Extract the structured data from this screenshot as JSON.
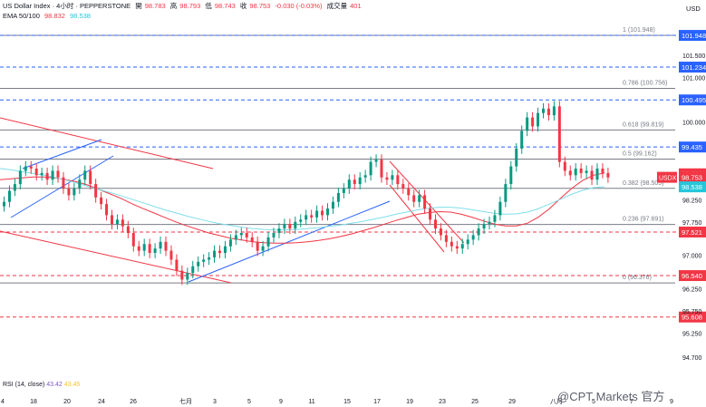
{
  "header": {
    "symbol": "US Dollar Index · 4小时 · PEPPERSTONE",
    "open_label": "開",
    "open": "98.783",
    "high_label": "高",
    "high": "98.793",
    "low_label": "低",
    "low": "98.743",
    "close_label": "收",
    "close": "98.753",
    "change": "-0.030 (-0.03%)",
    "volume_label": "成交量",
    "volume": "401",
    "ema_label": "EMA 50/100",
    "ema50": "98.832",
    "ema100": "98.538",
    "currency": "USD"
  },
  "rsi": {
    "label": "RSI (14, close)",
    "v1": "43.42",
    "v2": "43.45"
  },
  "watermark": "@CPT Markets 官方",
  "chart_data": {
    "type": "candlestick",
    "y_ticks": [
      "101.500",
      "101.000",
      "100.000",
      "98.250",
      "97.750",
      "97.000",
      "96.250",
      "95.750",
      "95.250",
      "94.700"
    ],
    "x_ticks": [
      "4",
      "18",
      "20",
      "24",
      "26",
      "七月",
      "3",
      "5",
      "9",
      "11",
      "15",
      "17",
      "19",
      "23",
      "25",
      "29",
      "八月",
      "5",
      "7",
      "9"
    ],
    "fib_levels": [
      {
        "label": "1 (101.948)",
        "value": 101.948
      },
      {
        "label": "0.786 (100.756)",
        "value": 100.756
      },
      {
        "label": "0.618 (99.819)",
        "value": 99.819
      },
      {
        "label": "0.5 (99.162)",
        "value": 99.162
      },
      {
        "label": "0.382 (98.505)",
        "value": 98.505
      },
      {
        "label": "0.236 (97.691)",
        "value": 97.691
      },
      {
        "label": "0 (96.376)",
        "value": 96.376
      }
    ],
    "price_lines": [
      {
        "value": "101.948",
        "color": "#2962ff"
      },
      {
        "value": "101.234",
        "color": "#2962ff"
      },
      {
        "value": "100.495",
        "color": "#2962ff"
      },
      {
        "value": "99.435",
        "color": "#2962ff"
      },
      {
        "value": "97.521",
        "color": "#f23645"
      },
      {
        "value": "96.540",
        "color": "#f23645"
      },
      {
        "value": "95.608",
        "color": "#f23645"
      }
    ],
    "axis_badges": [
      {
        "label": "98.832",
        "color": "#f23645"
      },
      {
        "label": "98.753",
        "color": "#f23645",
        "tag": "USDX"
      },
      {
        "label": "98.538",
        "color": "#26c6da"
      }
    ],
    "candle_close": [
      98.2,
      98.45,
      98.6,
      98.9,
      99.0,
      98.95,
      98.8,
      98.85,
      98.7,
      98.9,
      98.75,
      98.5,
      98.35,
      98.5,
      98.7,
      98.9,
      98.6,
      98.3,
      98.15,
      97.9,
      97.7,
      97.8,
      97.65,
      97.5,
      97.2,
      97.1,
      97.25,
      97.05,
      97.15,
      97.3,
      97.1,
      96.9,
      96.65,
      96.45,
      96.6,
      96.75,
      96.85,
      96.9,
      96.95,
      97.1,
      97.05,
      97.2,
      97.35,
      97.45,
      97.5,
      97.4,
      97.3,
      97.1,
      97.2,
      97.4,
      97.5,
      97.6,
      97.7,
      97.6,
      97.75,
      97.8,
      97.9,
      97.85,
      98.0,
      97.9,
      98.05,
      98.2,
      98.4,
      98.5,
      98.7,
      98.6,
      98.75,
      98.8,
      99.1,
      99.15,
      98.75,
      98.7,
      98.8,
      98.6,
      98.5,
      98.35,
      98.2,
      98.35,
      98.05,
      97.8,
      97.6,
      97.45,
      97.3,
      97.2,
      97.15,
      97.25,
      97.35,
      97.45,
      97.6,
      97.7,
      97.75,
      97.9,
      98.2,
      98.6,
      99.0,
      99.4,
      99.8,
      100.1,
      99.9,
      100.2,
      100.3,
      100.15,
      100.35,
      99.1,
      98.9,
      98.8,
      98.95,
      98.85,
      98.9,
      98.7,
      98.95,
      98.85,
      98.75
    ],
    "ema50": [
      98.7,
      98.72,
      98.74,
      98.76,
      98.76,
      98.74,
      98.7,
      98.65,
      98.58,
      98.48,
      98.38,
      98.28,
      98.16,
      98.05,
      97.95,
      97.85,
      97.75,
      97.66,
      97.58,
      97.5,
      97.44,
      97.38,
      97.34,
      97.3,
      97.28,
      97.27,
      97.27,
      97.28,
      97.3,
      97.33,
      97.37,
      97.42,
      97.48,
      97.55,
      97.62,
      97.7,
      97.78,
      97.85,
      97.92,
      97.96,
      97.98,
      97.97,
      97.92,
      97.85,
      97.77,
      97.7,
      97.66,
      97.66,
      97.72,
      97.86,
      98.05,
      98.28,
      98.5,
      98.68,
      98.8,
      98.85
    ],
    "ema100": [
      98.95,
      98.92,
      98.88,
      98.84,
      98.8,
      98.75,
      98.69,
      98.62,
      98.55,
      98.48,
      98.41,
      98.34,
      98.26,
      98.18,
      98.1,
      98.02,
      97.95,
      97.88,
      97.82,
      97.76,
      97.71,
      97.67,
      97.63,
      97.6,
      97.58,
      97.57,
      97.57,
      97.58,
      97.6,
      97.62,
      97.65,
      97.68,
      97.72,
      97.76,
      97.81,
      97.86,
      97.92,
      97.97,
      98.02,
      98.06,
      98.08,
      98.08,
      98.06,
      98.02,
      97.98,
      97.94,
      97.92,
      97.93,
      97.97,
      98.05,
      98.15,
      98.26,
      98.37,
      98.46,
      98.52,
      98.54
    ]
  }
}
